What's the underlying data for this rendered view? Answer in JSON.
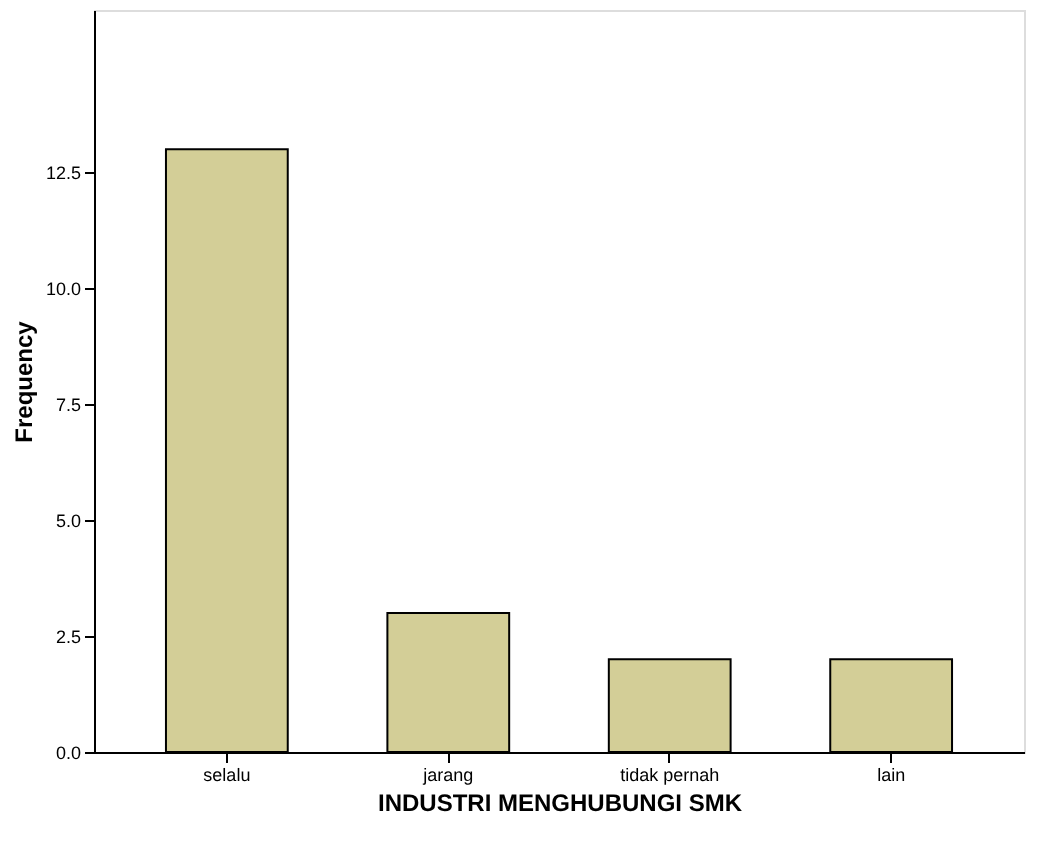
{
  "chart_data": {
    "type": "bar",
    "xlabel": "INDUSTRI MENGHUBUNGI SMK",
    "ylabel": "Frequency",
    "categories": [
      "selalu",
      "jarang",
      "tidak pernah",
      "lain"
    ],
    "values": [
      13,
      3,
      2,
      2
    ],
    "color": "#d3ce97",
    "ylim": [
      0,
      16
    ],
    "yticks": [
      {
        "value": 0,
        "label": "0.0"
      },
      {
        "value": 2.5,
        "label": "2.5"
      },
      {
        "value": 5,
        "label": "5.0"
      },
      {
        "value": 7.5,
        "label": "7.5"
      },
      {
        "value": 10,
        "label": "10.0"
      },
      {
        "value": 12.5,
        "label": "12.5"
      }
    ],
    "grid": false
  }
}
